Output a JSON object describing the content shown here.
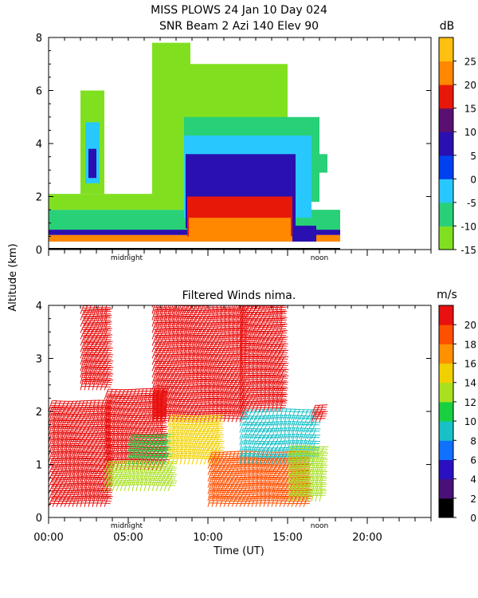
{
  "chart_data": [
    {
      "type": "heatmap",
      "title": "MISS PLOWS  24 Jan 10 Day 024",
      "subtitle": "SNR Beam 2 Azi 140 Elev 90",
      "ylabel": "Altitude (km)",
      "ylim": [
        0,
        8
      ],
      "yticks": [
        "0",
        "2",
        "4",
        "6",
        "8"
      ],
      "xlim": [
        0,
        24
      ],
      "markers": [
        "midnight",
        "noon"
      ],
      "colorbar": {
        "unit": "dB",
        "range": [
          -15,
          30
        ],
        "ticks": [
          "-15",
          "-10",
          "-5",
          "0",
          "5",
          "10",
          "15",
          "20",
          "25"
        ],
        "bands": [
          "#80e020",
          "#28d078",
          "#28c8ff",
          "#0040f0",
          "#2a10b0",
          "#5a1070",
          "#e81808",
          "#ff8800",
          "#ffc010"
        ]
      },
      "regions": [
        {
          "t0": 0.0,
          "t1": 18.3,
          "z0": 0.3,
          "z1": 0.55,
          "band": 7
        },
        {
          "t0": 0.0,
          "t1": 18.3,
          "z0": 0.55,
          "z1": 0.75,
          "band": 4
        },
        {
          "t0": 0.0,
          "t1": 18.3,
          "z0": 0.75,
          "z1": 1.5,
          "band": 1
        },
        {
          "t0": 0.0,
          "t1": 10.5,
          "z0": 1.5,
          "z1": 2.1,
          "band": 0
        },
        {
          "t0": 2.0,
          "t1": 3.5,
          "z0": 2.1,
          "z1": 6.0,
          "band": 0
        },
        {
          "t0": 2.3,
          "t1": 3.2,
          "z0": 2.5,
          "z1": 4.8,
          "band": 2
        },
        {
          "t0": 2.5,
          "t1": 3.0,
          "z0": 2.7,
          "z1": 3.8,
          "band": 4
        },
        {
          "t0": 6.5,
          "t1": 8.9,
          "z0": 2.0,
          "z1": 7.8,
          "band": 0
        },
        {
          "t0": 8.5,
          "t1": 15.0,
          "z0": 2.5,
          "z1": 7.0,
          "band": 0
        },
        {
          "t0": 8.5,
          "t1": 17.0,
          "z0": 1.8,
          "z1": 5.0,
          "band": 1
        },
        {
          "t0": 8.5,
          "t1": 16.5,
          "z0": 1.2,
          "z1": 4.3,
          "band": 2
        },
        {
          "t0": 8.6,
          "t1": 15.5,
          "z0": 0.8,
          "z1": 3.6,
          "band": 4
        },
        {
          "t0": 8.7,
          "t1": 15.3,
          "z0": 0.5,
          "z1": 2.0,
          "band": 6
        },
        {
          "t0": 8.8,
          "t1": 15.2,
          "z0": 0.3,
          "z1": 1.2,
          "band": 7
        },
        {
          "t0": 15.3,
          "t1": 16.8,
          "z0": 0.3,
          "z1": 0.9,
          "band": 4
        },
        {
          "t0": 17.0,
          "t1": 17.5,
          "z0": 2.9,
          "z1": 3.6,
          "band": 1
        }
      ]
    },
    {
      "type": "barbs",
      "title": "Filtered Winds nima.",
      "xlabel": "Time (UT)",
      "xlim": [
        0,
        24
      ],
      "xticks": [
        "00:00",
        "05:00",
        "10:00",
        "15:00",
        "20:00"
      ],
      "ylim": [
        0,
        4
      ],
      "yticks": [
        "0",
        "1",
        "2",
        "3",
        "4"
      ],
      "markers": [
        "midnight",
        "noon"
      ],
      "colorbar": {
        "unit": "m/s",
        "range": [
          0,
          22
        ],
        "ticks": [
          "0",
          "2",
          "4",
          "6",
          "8",
          "10",
          "12",
          "14",
          "16",
          "18",
          "20"
        ],
        "bands": [
          "#000000",
          "#4a1078",
          "#2a10c0",
          "#1070ff",
          "#18c0c8",
          "#18d040",
          "#a8e020",
          "#f0d000",
          "#ff9000",
          "#ff5000",
          "#e81010"
        ]
      },
      "speed_regions": [
        {
          "t0": 0.0,
          "t1": 3.5,
          "z0": 0.2,
          "z1": 2.1,
          "speed": 20
        },
        {
          "t0": 2.0,
          "t1": 3.6,
          "z0": 2.4,
          "z1": 3.9,
          "speed": 21
        },
        {
          "t0": 3.5,
          "t1": 7.0,
          "z0": 0.9,
          "z1": 2.3,
          "speed": 20
        },
        {
          "t0": 3.5,
          "t1": 7.5,
          "z0": 0.5,
          "z1": 0.9,
          "speed": 13
        },
        {
          "t0": 5.0,
          "t1": 7.5,
          "z0": 1.0,
          "z1": 1.4,
          "speed": 10
        },
        {
          "t0": 6.5,
          "t1": 12.0,
          "z0": 1.8,
          "z1": 4.0,
          "speed": 21
        },
        {
          "t0": 7.5,
          "t1": 10.5,
          "z0": 1.0,
          "z1": 1.8,
          "speed": 14
        },
        {
          "t0": 10.0,
          "t1": 16.0,
          "z0": 0.2,
          "z1": 1.1,
          "speed": 18
        },
        {
          "t0": 12.0,
          "t1": 16.5,
          "z0": 1.0,
          "z1": 1.9,
          "speed": 9
        },
        {
          "t0": 12.0,
          "t1": 14.5,
          "z0": 2.0,
          "z1": 4.0,
          "speed": 20
        },
        {
          "t0": 15.0,
          "t1": 17.0,
          "z0": 0.3,
          "z1": 1.2,
          "speed": 13
        },
        {
          "t0": 16.5,
          "t1": 17.0,
          "z0": 1.8,
          "z1": 2.0,
          "speed": 21
        }
      ]
    }
  ]
}
